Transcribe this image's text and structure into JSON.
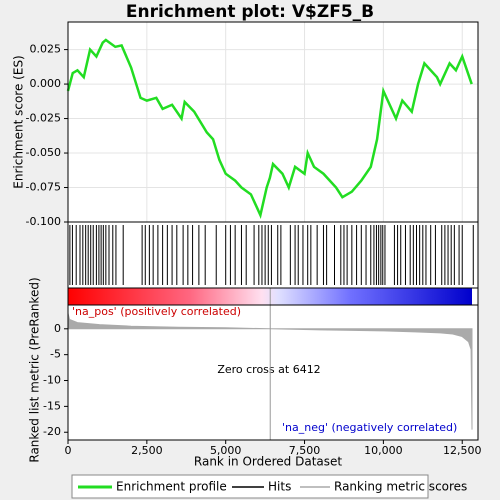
{
  "chart_data": [
    {
      "type": "line",
      "title": "Enrichment plot: V$ZF5_B",
      "ylabel": "Enrichment score (ES)",
      "xlim": [
        0,
        13000
      ],
      "ylim": [
        -0.1,
        0.045
      ],
      "grid": true,
      "xticks": [
        0,
        2500,
        5000,
        7500,
        10000,
        12500
      ],
      "yticks": [
        0.025,
        {
          "value": 0,
          "label": "0.000"
        },
        -0.025,
        {
          "value": -0.05,
          "label": "-0.050"
        },
        -0.075,
        {
          "value": -0.1,
          "label": "-0.100"
        }
      ],
      "series": [
        {
          "name": "Enrichment profile",
          "color": "#22dd22",
          "x": [
            0,
            150,
            300,
            500,
            700,
            900,
            1100,
            1200,
            1500,
            1700,
            2000,
            2300,
            2500,
            2800,
            3000,
            3300,
            3600,
            3700,
            4000,
            4400,
            4600,
            4800,
            5000,
            5300,
            5500,
            5800,
            6000,
            6100,
            6200,
            6300,
            6400,
            6500,
            6800,
            7000,
            7200,
            7500,
            7600,
            7800,
            8100,
            8500,
            8700,
            9000,
            9300,
            9600,
            9800,
            10000,
            10200,
            10400,
            10600,
            10900,
            11100,
            11300,
            11700,
            11800,
            12100,
            12300,
            12500,
            12800
          ],
          "values": [
            -0.005,
            0.008,
            0.01,
            0.005,
            0.025,
            0.02,
            0.03,
            0.032,
            0.027,
            0.028,
            0.012,
            -0.01,
            -0.012,
            -0.01,
            -0.018,
            -0.015,
            -0.025,
            -0.013,
            -0.02,
            -0.035,
            -0.04,
            -0.055,
            -0.065,
            -0.07,
            -0.075,
            -0.08,
            -0.09,
            -0.095,
            -0.085,
            -0.075,
            -0.068,
            -0.058,
            -0.065,
            -0.075,
            -0.06,
            -0.065,
            -0.05,
            -0.06,
            -0.065,
            -0.075,
            -0.082,
            -0.078,
            -0.07,
            -0.06,
            -0.04,
            -0.005,
            -0.015,
            -0.025,
            -0.012,
            -0.02,
            0.0,
            0.015,
            0.005,
            0.0,
            0.015,
            0.01,
            0.02,
            0.0
          ]
        }
      ]
    },
    {
      "type": "rug",
      "xlim": [
        0,
        13000
      ],
      "series": [
        {
          "name": "Hits",
          "color": "#000000",
          "x": [
            60,
            140,
            260,
            380,
            470,
            560,
            640,
            720,
            800,
            900,
            980,
            1050,
            1120,
            1200,
            1300,
            1420,
            1520,
            1750,
            2350,
            2450,
            2580,
            2700,
            2850,
            3000,
            3150,
            3300,
            3450,
            3650,
            3800,
            3950,
            4150,
            4350,
            4700,
            5000,
            5150,
            5300,
            5500,
            5650,
            5900,
            6050,
            6150,
            6250,
            6350,
            6450,
            6650,
            6750,
            7050,
            7200,
            7300,
            7450,
            7600,
            7700,
            7900,
            8100,
            8200,
            8450,
            8650,
            8750,
            8850,
            9000,
            9150,
            9300,
            9450,
            9600,
            9700,
            9780,
            9850,
            9920,
            9980,
            10050,
            10350,
            10450,
            10550,
            10700,
            10850,
            10950,
            11050,
            11150,
            11250,
            11350,
            11500,
            11650,
            11850,
            11950,
            12050,
            12150,
            12250,
            12400,
            12500,
            12850
          ]
        }
      ]
    },
    {
      "type": "area",
      "xlabel": "Rank in Ordered Dataset",
      "ylabel": "Ranked list metric (PreRanked)",
      "xlim": [
        0,
        13000
      ],
      "ylim": [
        -21.5,
        4.6
      ],
      "xticks": [
        0,
        {
          "value": 2500,
          "label": "2,500"
        },
        {
          "value": 5000,
          "label": "5,000"
        },
        {
          "value": 7500,
          "label": "7,500"
        },
        {
          "value": 10000,
          "label": "10,000"
        },
        {
          "value": 12500,
          "label": "12,500"
        }
      ],
      "yticks": [
        0,
        -5,
        -10,
        -15,
        -20
      ],
      "zero_cross": 6412,
      "annotations": [
        "'na_pos' (positively correlated)",
        "Zero cross at 6412",
        "'na_neg' (negatively correlated)"
      ],
      "series": [
        {
          "name": "Ranking metric scores",
          "color": "#aaaaaa",
          "x": [
            0,
            50,
            300,
            1000,
            2000,
            3500,
            5000,
            6412,
            8000,
            9000,
            10000,
            11000,
            11800,
            12200,
            12500,
            12700,
            12780,
            12810
          ],
          "values": [
            3,
            1.8,
            1.2,
            0.8,
            0.5,
            0.3,
            0.2,
            0,
            -0.2,
            -0.3,
            -0.4,
            -0.6,
            -0.8,
            -1.0,
            -1.5,
            -2.5,
            -4,
            -19.5
          ]
        }
      ]
    }
  ]
}
